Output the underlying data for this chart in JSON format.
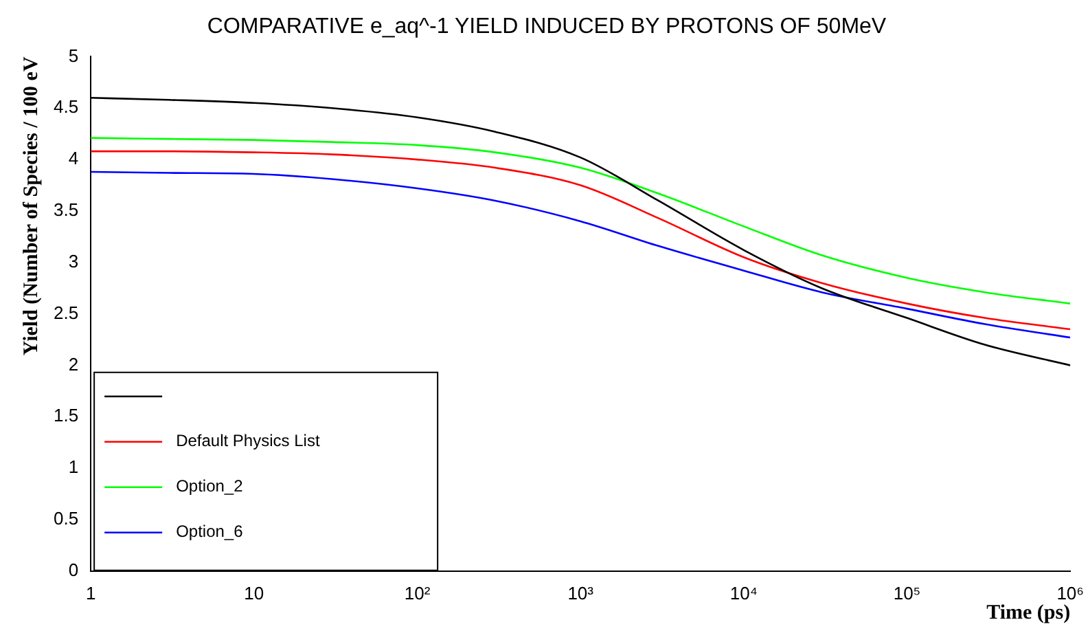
{
  "chart_data": {
    "type": "line",
    "title": "COMPARATIVE e_aq^-1 YIELD INDUCED BY PROTONS OF 50MeV",
    "xlabel": "Time (ps)",
    "ylabel": "Yield (Number of Species / 100 eV",
    "log": "x",
    "xlim": [
      1,
      1000000
    ],
    "xticks": [
      1,
      10,
      {
        "value": 100,
        "label": "10²"
      },
      {
        "value": 1000,
        "label": "10³"
      },
      {
        "value": 10000,
        "label": "10⁴"
      },
      {
        "value": 100000,
        "label": "10⁵"
      },
      {
        "value": 1000000,
        "label": "10⁶"
      }
    ],
    "ylim": [
      0,
      5
    ],
    "yticks": [
      0,
      0.5,
      1,
      1.5,
      2,
      2.5,
      3,
      3.5,
      4,
      4.5,
      5
    ],
    "x": [
      1,
      3,
      10,
      30,
      100,
      300,
      1000,
      3000,
      10000,
      30000,
      100000,
      300000,
      1000000
    ],
    "series": [
      {
        "color": "#000000",
        "values": [
          4.6,
          4.58,
          4.55,
          4.5,
          4.41,
          4.27,
          4.02,
          3.6,
          3.12,
          2.75,
          2.46,
          2.2,
          2.0
        ]
      },
      {
        "name": "Default Physics List",
        "color": "#ff0000",
        "values": [
          4.08,
          4.08,
          4.07,
          4.05,
          4.0,
          3.92,
          3.75,
          3.43,
          3.05,
          2.8,
          2.6,
          2.46,
          2.35
        ]
      },
      {
        "name": "Option_2",
        "color": "#00ff00",
        "values": [
          4.21,
          4.2,
          4.19,
          4.17,
          4.14,
          4.07,
          3.92,
          3.67,
          3.35,
          3.07,
          2.85,
          2.71,
          2.6
        ]
      },
      {
        "name": "Option_6",
        "color": "#0000ff",
        "values": [
          3.88,
          3.87,
          3.86,
          3.81,
          3.72,
          3.6,
          3.4,
          3.16,
          2.92,
          2.71,
          2.55,
          2.4,
          2.27
        ]
      }
    ],
    "legend": "bottom left",
    "marker": "none",
    "line_style": "solid"
  }
}
